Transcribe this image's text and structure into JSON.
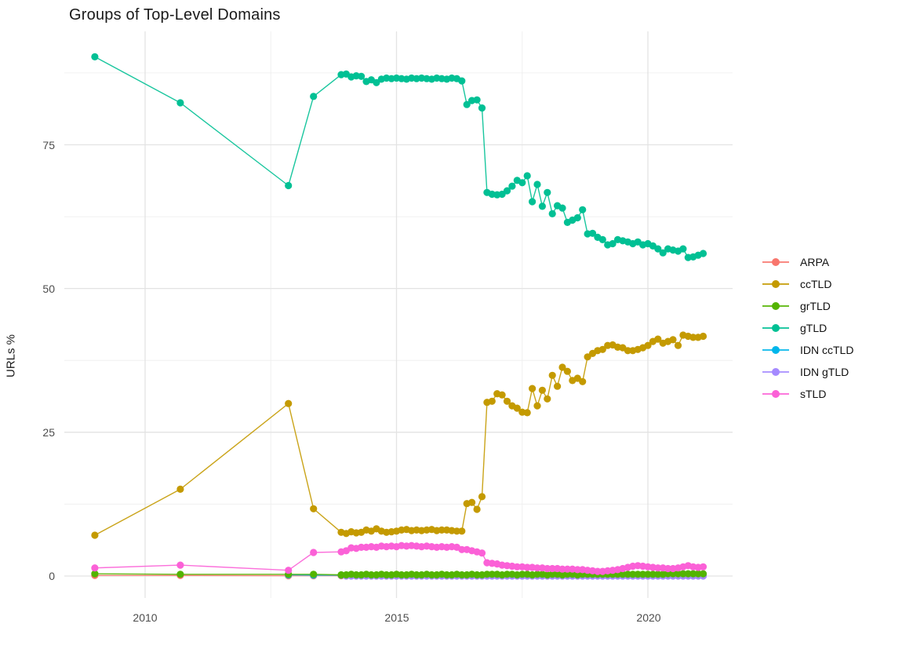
{
  "title": "Groups of Top-Level Domains",
  "y_axis_label": "URLs %",
  "chart_data": {
    "type": "line",
    "title": "Groups of Top-Level Domains",
    "xlabel": "",
    "ylabel": "URLs %",
    "legend_position": "right",
    "grid": true,
    "xlim": [
      2008.4,
      2021.7
    ],
    "ylim": [
      -3.8,
      94.7
    ],
    "xticks": [
      2010,
      2015,
      2020
    ],
    "xtick_labels": [
      "2010",
      "2015",
      "2020"
    ],
    "xticks_minor": [
      2012.5,
      2017.5
    ],
    "yticks": [
      0,
      25,
      50,
      75
    ],
    "ytick_labels": [
      "0",
      "25",
      "50",
      "75"
    ],
    "yticks_minor": [
      12.5,
      37.5,
      62.5,
      87.5
    ],
    "series": [
      {
        "name": "ARPA",
        "color": "#F8766D",
        "x": [
          2009.0,
          2010.7,
          2012.85,
          2013.35,
          2013.9,
          2014.0,
          2014.1,
          2014.2,
          2014.3,
          2014.4,
          2014.5,
          2014.6,
          2014.7,
          2014.8,
          2014.9,
          2015.0,
          2015.1,
          2015.2,
          2015.3,
          2015.4,
          2015.5,
          2015.6,
          2015.7,
          2015.8,
          2015.9,
          2016.0,
          2016.1,
          2016.2,
          2016.3,
          2016.4,
          2016.5,
          2016.6,
          2016.7,
          2016.8,
          2016.9,
          2017.0,
          2017.1,
          2017.2,
          2017.3,
          2017.4,
          2017.5,
          2017.6,
          2017.7,
          2017.8,
          2017.9,
          2018.0,
          2018.1,
          2018.2,
          2018.3,
          2018.4,
          2018.5,
          2018.6,
          2018.7,
          2018.8,
          2018.9,
          2019.0,
          2019.1,
          2019.2,
          2019.3,
          2019.4,
          2019.5,
          2019.6,
          2019.7,
          2019.8,
          2019.9,
          2020.0,
          2020.1,
          2020.2,
          2020.3,
          2020.4,
          2020.5,
          2020.6,
          2020.7,
          2020.8,
          2020.9,
          2021.0,
          2021.1
        ],
        "y": [
          0.1,
          0.1,
          0.05,
          0.05,
          0.05,
          0.05,
          0.05,
          0.05,
          0.05,
          0.05,
          0.05,
          0.05,
          0.05,
          0.05,
          0.05,
          0.05,
          0.05,
          0.05,
          0.05,
          0.05,
          0.05,
          0.05,
          0.05,
          0.05,
          0.05,
          0.05,
          0.05,
          0.05,
          0.05,
          0.05,
          0.05,
          0.05,
          0.05,
          0.05,
          0.05,
          0.05,
          0.05,
          0.05,
          0.05,
          0.05,
          0.05,
          0.05,
          0.05,
          0.05,
          0.05,
          0.05,
          0.05,
          0.05,
          0.05,
          0.05,
          0.05,
          0.05,
          0.05,
          0.05,
          0.05,
          0.05,
          0.05,
          0.05,
          0.05,
          0.05,
          0.05,
          0.05,
          0.05,
          0.05,
          0.05,
          0.05,
          0.05,
          0.05,
          0.05,
          0.05,
          0.05,
          0.05,
          0.05,
          0.05,
          0.05,
          0.05,
          0.05
        ]
      },
      {
        "name": "ccTLD",
        "color": "#C49A00",
        "x": [
          2009.0,
          2010.7,
          2012.85,
          2013.35,
          2013.9,
          2014.0,
          2014.1,
          2014.2,
          2014.3,
          2014.4,
          2014.5,
          2014.6,
          2014.7,
          2014.8,
          2014.9,
          2015.0,
          2015.1,
          2015.2,
          2015.3,
          2015.4,
          2015.5,
          2015.6,
          2015.7,
          2015.8,
          2015.9,
          2016.0,
          2016.1,
          2016.2,
          2016.3,
          2016.4,
          2016.5,
          2016.6,
          2016.7,
          2016.8,
          2016.9,
          2017.0,
          2017.1,
          2017.2,
          2017.3,
          2017.4,
          2017.5,
          2017.6,
          2017.7,
          2017.8,
          2017.9,
          2018.0,
          2018.1,
          2018.2,
          2018.3,
          2018.4,
          2018.5,
          2018.6,
          2018.7,
          2018.8,
          2018.9,
          2019.0,
          2019.1,
          2019.2,
          2019.3,
          2019.4,
          2019.5,
          2019.6,
          2019.7,
          2019.8,
          2019.9,
          2020.0,
          2020.1,
          2020.2,
          2020.3,
          2020.4,
          2020.5,
          2020.6,
          2020.7,
          2020.8,
          2020.9,
          2021.0,
          2021.1
        ],
        "y": [
          7.1,
          15.1,
          30.0,
          11.7,
          7.6,
          7.4,
          7.7,
          7.5,
          7.6,
          8.0,
          7.8,
          8.2,
          7.8,
          7.6,
          7.7,
          7.8,
          8.0,
          8.1,
          7.9,
          8.0,
          7.9,
          8.0,
          8.1,
          7.9,
          8.0,
          8.0,
          7.9,
          7.8,
          7.8,
          12.6,
          12.8,
          11.6,
          13.8,
          30.2,
          30.4,
          31.7,
          31.5,
          30.4,
          29.6,
          29.2,
          28.5,
          28.4,
          32.6,
          29.6,
          32.3,
          30.8,
          34.9,
          33.0,
          36.3,
          35.6,
          34.0,
          34.4,
          33.8,
          38.1,
          38.7,
          39.2,
          39.4,
          40.1,
          40.2,
          39.8,
          39.7,
          39.2,
          39.2,
          39.4,
          39.7,
          40.1,
          40.8,
          41.2,
          40.5,
          40.8,
          41.1,
          40.1,
          41.9,
          41.7,
          41.5,
          41.5,
          41.7
        ]
      },
      {
        "name": "grTLD",
        "color": "#53B400",
        "x": [
          2009.0,
          2010.7,
          2012.85,
          2013.35,
          2013.9,
          2014.0,
          2014.1,
          2014.2,
          2014.3,
          2014.4,
          2014.5,
          2014.6,
          2014.7,
          2014.8,
          2014.9,
          2015.0,
          2015.1,
          2015.2,
          2015.3,
          2015.4,
          2015.5,
          2015.6,
          2015.7,
          2015.8,
          2015.9,
          2016.0,
          2016.1,
          2016.2,
          2016.3,
          2016.4,
          2016.5,
          2016.6,
          2016.7,
          2016.8,
          2016.9,
          2017.0,
          2017.1,
          2017.2,
          2017.3,
          2017.4,
          2017.5,
          2017.6,
          2017.7,
          2017.8,
          2017.9,
          2018.0,
          2018.1,
          2018.2,
          2018.3,
          2018.4,
          2018.5,
          2018.6,
          2018.7,
          2018.8,
          2018.9,
          2019.0,
          2019.1,
          2019.2,
          2019.3,
          2019.4,
          2019.5,
          2019.6,
          2019.7,
          2019.8,
          2019.9,
          2020.0,
          2020.1,
          2020.2,
          2020.3,
          2020.4,
          2020.5,
          2020.6,
          2020.7,
          2020.8,
          2020.9,
          2021.0,
          2021.1
        ],
        "y": [
          0.4,
          0.3,
          0.3,
          0.3,
          0.2,
          0.2,
          0.3,
          0.2,
          0.2,
          0.3,
          0.2,
          0.2,
          0.3,
          0.2,
          0.2,
          0.3,
          0.2,
          0.2,
          0.3,
          0.2,
          0.2,
          0.3,
          0.2,
          0.2,
          0.3,
          0.2,
          0.2,
          0.3,
          0.2,
          0.2,
          0.3,
          0.2,
          0.2,
          0.3,
          0.3,
          0.3,
          0.2,
          0.3,
          0.3,
          0.2,
          0.3,
          0.3,
          0.2,
          0.3,
          0.3,
          0.2,
          0.3,
          0.3,
          0.2,
          0.3,
          0.3,
          0.2,
          0.3,
          0.3,
          0.3,
          0.3,
          0.3,
          0.3,
          0.3,
          0.3,
          0.3,
          0.3,
          0.3,
          0.3,
          0.3,
          0.3,
          0.3,
          0.3,
          0.3,
          0.4,
          0.4,
          0.4,
          0.4,
          0.4,
          0.4,
          0.4,
          0.4
        ]
      },
      {
        "name": "gTLD",
        "color": "#00C094",
        "x": [
          2009.0,
          2010.7,
          2012.85,
          2013.35,
          2013.9,
          2014.0,
          2014.1,
          2014.2,
          2014.3,
          2014.4,
          2014.5,
          2014.6,
          2014.7,
          2014.8,
          2014.9,
          2015.0,
          2015.1,
          2015.2,
          2015.3,
          2015.4,
          2015.5,
          2015.6,
          2015.7,
          2015.8,
          2015.9,
          2016.0,
          2016.1,
          2016.2,
          2016.3,
          2016.4,
          2016.5,
          2016.6,
          2016.7,
          2016.8,
          2016.9,
          2017.0,
          2017.1,
          2017.2,
          2017.3,
          2017.4,
          2017.5,
          2017.6,
          2017.7,
          2017.8,
          2017.9,
          2018.0,
          2018.1,
          2018.2,
          2018.3,
          2018.4,
          2018.5,
          2018.6,
          2018.7,
          2018.8,
          2018.9,
          2019.0,
          2019.1,
          2019.2,
          2019.3,
          2019.4,
          2019.5,
          2019.6,
          2019.7,
          2019.8,
          2019.9,
          2020.0,
          2020.1,
          2020.2,
          2020.3,
          2020.4,
          2020.5,
          2020.6,
          2020.7,
          2020.8,
          2020.9,
          2021.0,
          2021.1
        ],
        "y": [
          90.3,
          82.3,
          67.9,
          83.4,
          87.2,
          87.3,
          86.8,
          87.0,
          86.9,
          86.0,
          86.3,
          85.8,
          86.4,
          86.6,
          86.5,
          86.6,
          86.5,
          86.4,
          86.6,
          86.5,
          86.6,
          86.5,
          86.4,
          86.6,
          86.5,
          86.4,
          86.6,
          86.5,
          86.1,
          82.0,
          82.7,
          82.8,
          81.4,
          66.7,
          66.4,
          66.3,
          66.4,
          67.0,
          67.8,
          68.8,
          68.4,
          69.6,
          65.1,
          68.1,
          64.3,
          66.7,
          63.0,
          64.4,
          64.0,
          61.5,
          61.9,
          62.3,
          63.7,
          59.5,
          59.6,
          58.9,
          58.5,
          57.6,
          57.8,
          58.5,
          58.3,
          58.1,
          57.8,
          58.1,
          57.6,
          57.8,
          57.4,
          56.9,
          56.2,
          56.9,
          56.7,
          56.5,
          56.9,
          55.4,
          55.5,
          55.8,
          56.1
        ]
      },
      {
        "name": "IDN ccTLD",
        "color": "#00B6EB",
        "x": [
          2012.85,
          2013.35,
          2013.9,
          2014.0,
          2014.1,
          2014.2,
          2014.3,
          2014.4,
          2014.5,
          2014.6,
          2014.7,
          2014.8,
          2014.9,
          2015.0,
          2015.1,
          2015.2,
          2015.3,
          2015.4,
          2015.5,
          2015.6,
          2015.7,
          2015.8,
          2015.9,
          2016.0,
          2016.1,
          2016.2,
          2016.3,
          2016.4,
          2016.5,
          2016.6,
          2016.7,
          2016.8,
          2016.9,
          2017.0,
          2017.1,
          2017.2,
          2017.3,
          2017.4,
          2017.5,
          2017.6,
          2017.7,
          2017.8,
          2017.9,
          2018.0,
          2018.1,
          2018.2,
          2018.3,
          2018.4,
          2018.5,
          2018.6,
          2018.7,
          2018.8,
          2018.9,
          2019.0,
          2019.1,
          2019.2,
          2019.3,
          2019.4,
          2019.5,
          2019.6,
          2019.7,
          2019.8,
          2019.9,
          2020.0,
          2020.1,
          2020.2,
          2020.3,
          2020.4,
          2020.5,
          2020.6,
          2020.7,
          2020.8,
          2020.9,
          2021.0,
          2021.1
        ],
        "y": [
          0.2,
          0.15,
          0.15,
          0.15,
          0.15,
          0.15,
          0.15,
          0.15,
          0.15,
          0.15,
          0.15,
          0.15,
          0.15,
          0.15,
          0.15,
          0.15,
          0.15,
          0.15,
          0.15,
          0.15,
          0.15,
          0.15,
          0.15,
          0.15,
          0.15,
          0.15,
          0.15,
          0.15,
          0.15,
          0.15,
          0.15,
          0.15,
          0.15,
          0.15,
          0.15,
          0.15,
          0.15,
          0.15,
          0.15,
          0.15,
          0.15,
          0.15,
          0.15,
          0.15,
          0.15,
          0.15,
          0.15,
          0.15,
          0.15,
          0.15,
          0.15,
          0.15,
          0.15,
          0.15,
          0.15,
          0.15,
          0.15,
          0.15,
          0.15,
          0.15,
          0.15,
          0.15,
          0.15,
          0.15,
          0.15,
          0.15,
          0.15,
          0.15,
          0.15,
          0.15,
          0.15,
          0.15,
          0.15,
          0.15,
          0.15
        ]
      },
      {
        "name": "IDN gTLD",
        "color": "#A58AFF",
        "x": [
          2014.0,
          2014.1,
          2014.2,
          2014.3,
          2014.4,
          2014.5,
          2014.6,
          2014.7,
          2014.8,
          2014.9,
          2015.0,
          2015.1,
          2015.2,
          2015.3,
          2015.4,
          2015.5,
          2015.6,
          2015.7,
          2015.8,
          2015.9,
          2016.0,
          2016.1,
          2016.2,
          2016.3,
          2016.4,
          2016.5,
          2016.6,
          2016.7,
          2016.8,
          2016.9,
          2017.0,
          2017.1,
          2017.2,
          2017.3,
          2017.4,
          2017.5,
          2017.6,
          2017.7,
          2017.8,
          2017.9,
          2018.0,
          2018.1,
          2018.2,
          2018.3,
          2018.4,
          2018.5,
          2018.6,
          2018.7,
          2018.8,
          2018.9,
          2019.0,
          2019.1,
          2019.2,
          2019.3,
          2019.4,
          2019.5,
          2019.6,
          2019.7,
          2019.8,
          2019.9,
          2020.0,
          2020.1,
          2020.2,
          2020.3,
          2020.4,
          2020.5,
          2020.6,
          2020.7,
          2020.8,
          2020.9,
          2021.0,
          2021.1
        ],
        "y": [
          0.0,
          0.0,
          0.0,
          0.0,
          0.0,
          0.0,
          0.0,
          0.0,
          0.0,
          0.0,
          0.0,
          0.0,
          0.0,
          0.0,
          0.0,
          0.0,
          0.0,
          0.0,
          0.0,
          0.0,
          0.0,
          0.0,
          0.0,
          0.0,
          0.0,
          0.0,
          0.0,
          0.0,
          0.0,
          0.0,
          0.0,
          0.0,
          0.0,
          0.0,
          0.0,
          0.0,
          0.0,
          0.0,
          0.0,
          0.0,
          0.0,
          0.0,
          0.0,
          0.0,
          0.0,
          0.0,
          0.0,
          0.0,
          0.0,
          0.0,
          0.0,
          0.0,
          0.0,
          0.0,
          0.0,
          0.0,
          0.0,
          0.0,
          0.0,
          0.0,
          0.0,
          0.0,
          0.0,
          0.0,
          0.0,
          0.0,
          0.0,
          0.0,
          0.0,
          0.0,
          0.0,
          0.0
        ]
      },
      {
        "name": "sTLD",
        "color": "#FB61D7",
        "x": [
          2009.0,
          2010.7,
          2012.85,
          2013.35,
          2013.9,
          2014.0,
          2014.1,
          2014.2,
          2014.3,
          2014.4,
          2014.5,
          2014.6,
          2014.7,
          2014.8,
          2014.9,
          2015.0,
          2015.1,
          2015.2,
          2015.3,
          2015.4,
          2015.5,
          2015.6,
          2015.7,
          2015.8,
          2015.9,
          2016.0,
          2016.1,
          2016.2,
          2016.3,
          2016.4,
          2016.5,
          2016.6,
          2016.7,
          2016.8,
          2016.9,
          2017.0,
          2017.1,
          2017.2,
          2017.3,
          2017.4,
          2017.5,
          2017.6,
          2017.7,
          2017.8,
          2017.9,
          2018.0,
          2018.1,
          2018.2,
          2018.3,
          2018.4,
          2018.5,
          2018.6,
          2018.7,
          2018.8,
          2018.9,
          2019.0,
          2019.1,
          2019.2,
          2019.3,
          2019.4,
          2019.5,
          2019.6,
          2019.7,
          2019.8,
          2019.9,
          2020.0,
          2020.1,
          2020.2,
          2020.3,
          2020.4,
          2020.5,
          2020.6,
          2020.7,
          2020.8,
          2020.9,
          2021.0,
          2021.1
        ],
        "y": [
          1.4,
          1.9,
          1.0,
          4.1,
          4.2,
          4.4,
          4.9,
          4.8,
          5.0,
          5.0,
          5.1,
          5.0,
          5.2,
          5.1,
          5.2,
          5.1,
          5.3,
          5.2,
          5.3,
          5.2,
          5.1,
          5.2,
          5.1,
          5.0,
          5.1,
          5.0,
          5.1,
          5.0,
          4.6,
          4.6,
          4.4,
          4.2,
          4.0,
          2.3,
          2.2,
          2.1,
          1.9,
          1.8,
          1.7,
          1.6,
          1.6,
          1.5,
          1.5,
          1.4,
          1.4,
          1.3,
          1.3,
          1.3,
          1.2,
          1.2,
          1.2,
          1.1,
          1.1,
          1.0,
          0.9,
          0.8,
          0.8,
          0.9,
          1.0,
          1.1,
          1.3,
          1.5,
          1.7,
          1.8,
          1.7,
          1.6,
          1.5,
          1.4,
          1.4,
          1.3,
          1.3,
          1.4,
          1.6,
          1.8,
          1.6,
          1.5,
          1.6
        ]
      }
    ]
  }
}
